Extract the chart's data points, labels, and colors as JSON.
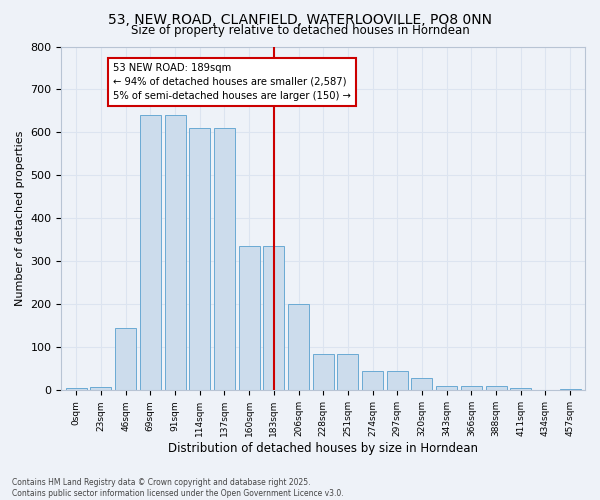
{
  "title": "53, NEW ROAD, CLANFIELD, WATERLOOVILLE, PO8 0NN",
  "subtitle": "Size of property relative to detached houses in Horndean",
  "xlabel": "Distribution of detached houses by size in Horndean",
  "ylabel": "Number of detached properties",
  "bar_labels": [
    "0sqm",
    "23sqm",
    "46sqm",
    "69sqm",
    "91sqm",
    "114sqm",
    "137sqm",
    "160sqm",
    "183sqm",
    "206sqm",
    "228sqm",
    "251sqm",
    "274sqm",
    "297sqm",
    "320sqm",
    "343sqm",
    "366sqm",
    "388sqm",
    "411sqm",
    "434sqm",
    "457sqm"
  ],
  "bar_values": [
    5,
    8,
    145,
    640,
    640,
    610,
    610,
    335,
    335,
    200,
    85,
    85,
    45,
    45,
    28,
    10,
    10,
    10,
    5,
    0,
    3
  ],
  "bar_color": "#ccdcec",
  "bar_edge_color": "#6aaad4",
  "grid_color": "#dce4f0",
  "bg_color": "#eef2f8",
  "vline_x_index": 8,
  "vline_color": "#cc0000",
  "annotation_text": "53 NEW ROAD: 189sqm\n← 94% of detached houses are smaller (2,587)\n5% of semi-detached houses are larger (150) →",
  "annotation_box_color": "#cc0000",
  "ylim": [
    0,
    800
  ],
  "yticks": [
    0,
    100,
    200,
    300,
    400,
    500,
    600,
    700,
    800
  ],
  "footer_line1": "Contains HM Land Registry data © Crown copyright and database right 2025.",
  "footer_line2": "Contains public sector information licensed under the Open Government Licence v3.0."
}
